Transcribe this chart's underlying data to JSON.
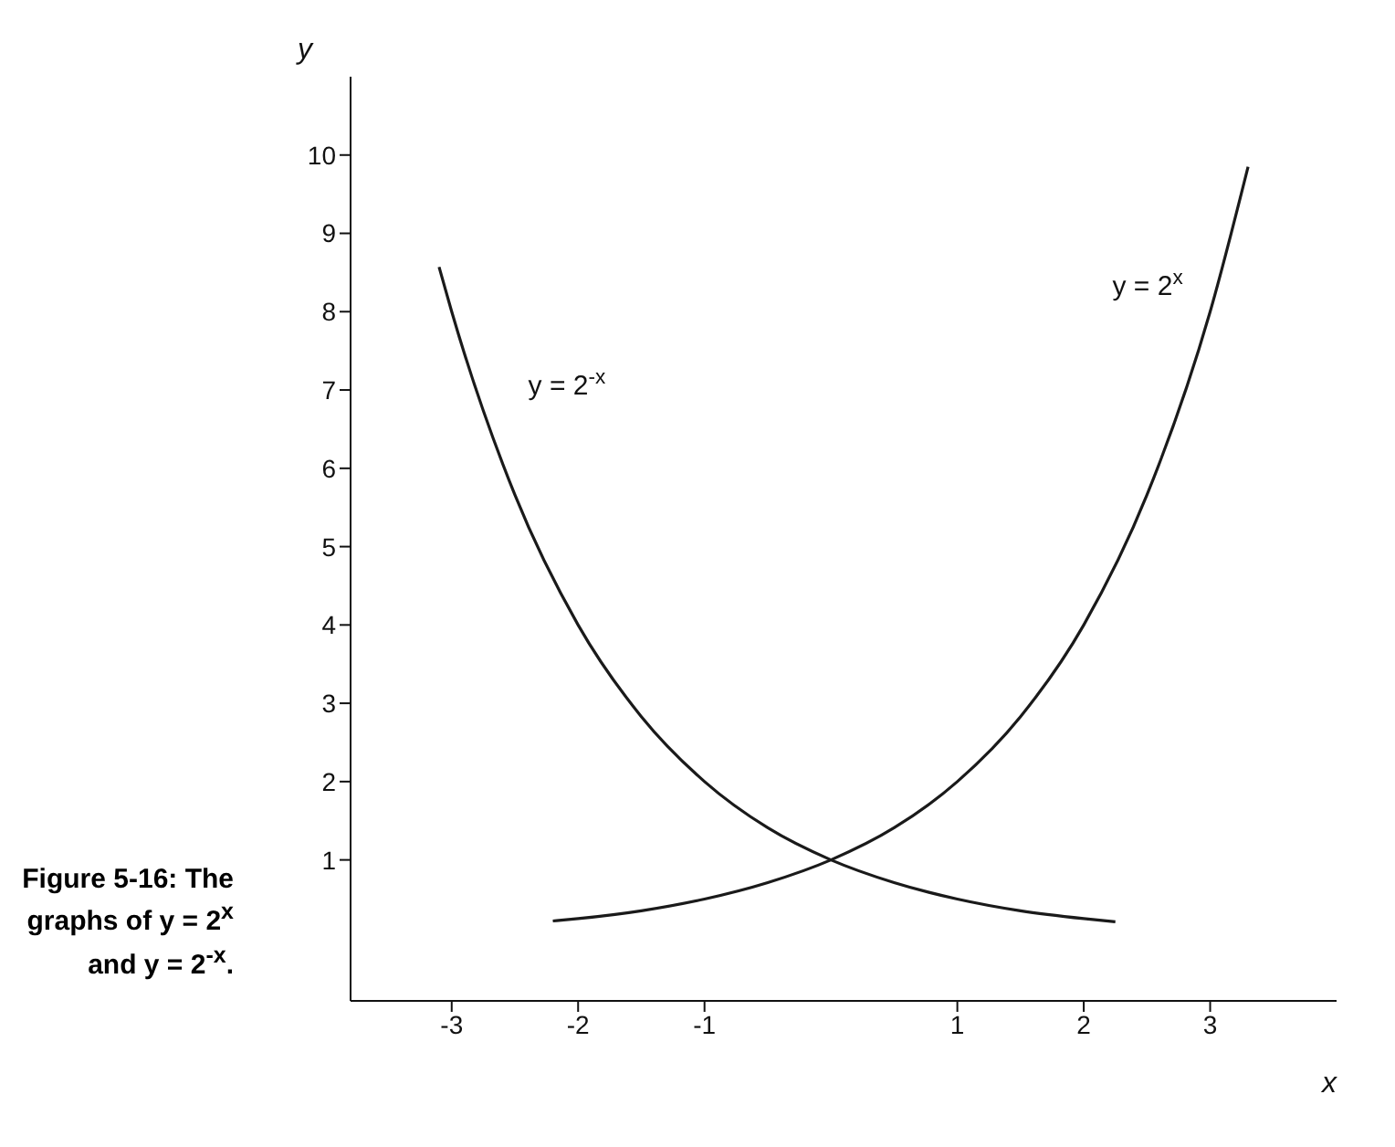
{
  "chart_data": {
    "type": "line",
    "xlabel": "x",
    "ylabel": "y",
    "xlim": [
      -3.8,
      4
    ],
    "ylim": [
      -0.8,
      11
    ],
    "xticks": [
      -3,
      -2,
      -1,
      1,
      2,
      3
    ],
    "yticks": [
      1,
      2,
      3,
      4,
      5,
      6,
      7,
      8,
      9,
      10
    ],
    "grid": false,
    "marker": "none",
    "line_style": "solid",
    "series": [
      {
        "name": "y = 2$^{x}$",
        "color": "#1a1a1a",
        "x": [
          -2.2,
          -2,
          -1.5,
          -1,
          -0.5,
          0,
          0.5,
          1,
          1.5,
          2,
          2.5,
          3,
          3.3
        ],
        "values": [
          0.22,
          0.25,
          0.35,
          0.5,
          0.71,
          1,
          1.41,
          2,
          2.83,
          4,
          5.66,
          8,
          9.85
        ]
      },
      {
        "name": "y = 2$^{-x}$",
        "color": "#1a1a1a",
        "x": [
          -3.1,
          -3,
          -2.5,
          -2,
          -1.5,
          -1,
          -0.5,
          0,
          0.5,
          1,
          1.5,
          2,
          2.25
        ],
        "values": [
          8.57,
          8,
          5.66,
          4,
          2.83,
          2,
          1.41,
          1,
          0.71,
          0.5,
          0.35,
          0.25,
          0.21
        ]
      }
    ],
    "annotations": [
      "Figure 5-16: The graphs of y = 2$^{x}$ and y = 2$^{-x}$."
    ]
  }
}
